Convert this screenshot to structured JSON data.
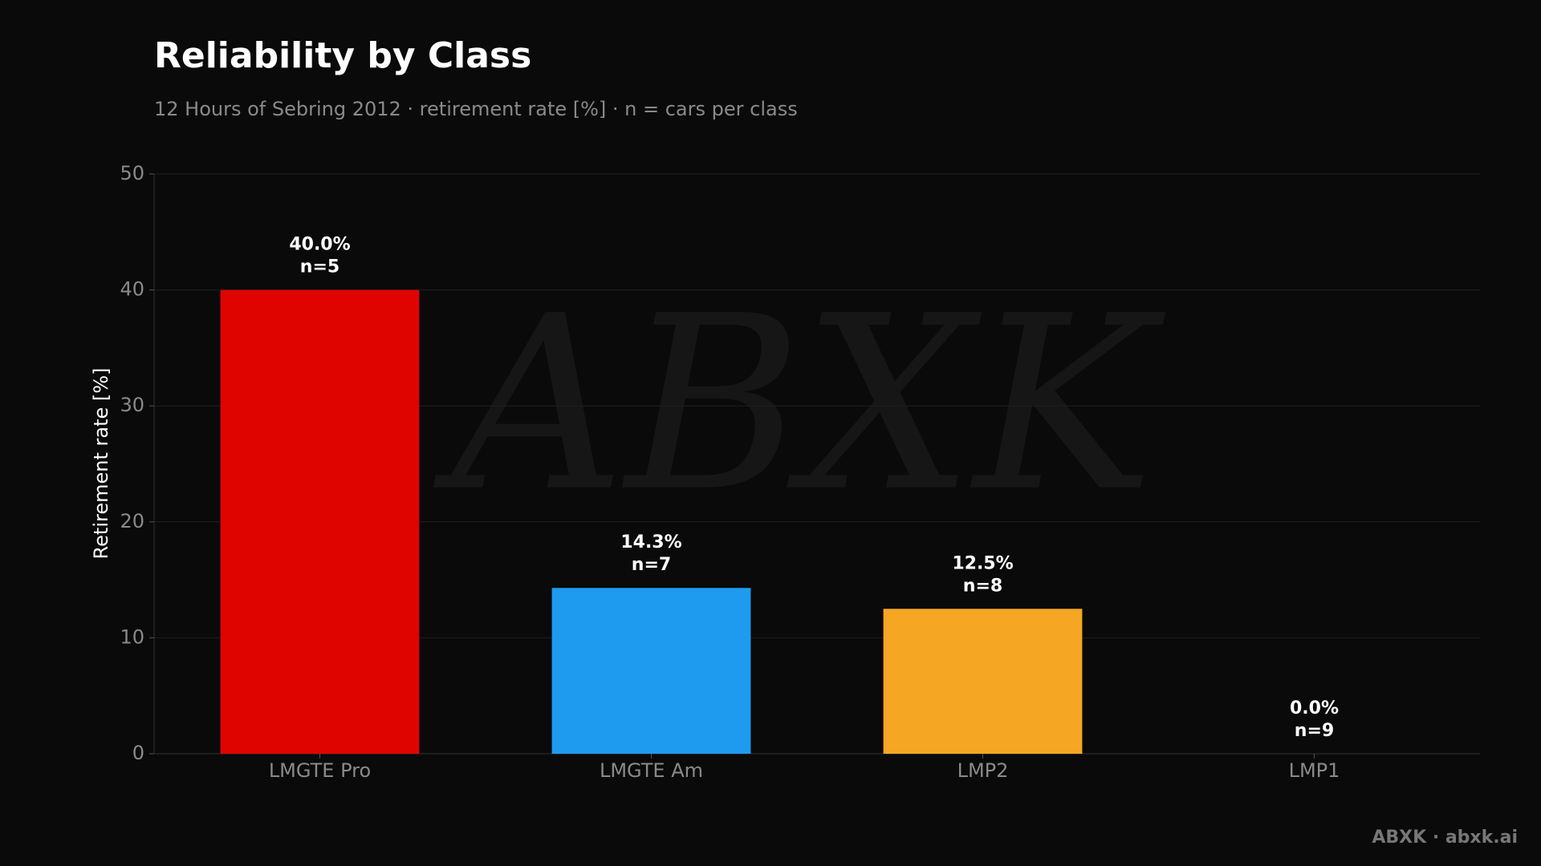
{
  "chart_data": {
    "type": "bar",
    "title": "Reliability by Class",
    "subtitle": "12 Hours of Sebring 2012 · retirement rate [%] · n = cars per class",
    "y_label": "Retirement rate [%]",
    "categories": [
      "LMGTE Pro",
      "LMGTE Am",
      "LMP2",
      "LMP1"
    ],
    "values": [
      40.0,
      14.3,
      12.5,
      0.0
    ],
    "value_labels": [
      "40.0%",
      "14.3%",
      "12.5%",
      "0.0%"
    ],
    "counts": {
      "values": [
        5,
        7,
        8,
        9
      ],
      "value_labels": [
        "n=5",
        "n=7",
        "n=8",
        "n=9"
      ]
    },
    "colors": [
      "#e00400",
      "#1e9bef",
      "#f5a623",
      null
    ],
    "ylim": [
      0,
      50
    ],
    "yticks": [
      0,
      10,
      20,
      30,
      40,
      50
    ],
    "grid": true,
    "watermark": "ABXK",
    "footer": "ABXK · abxk.ai"
  }
}
